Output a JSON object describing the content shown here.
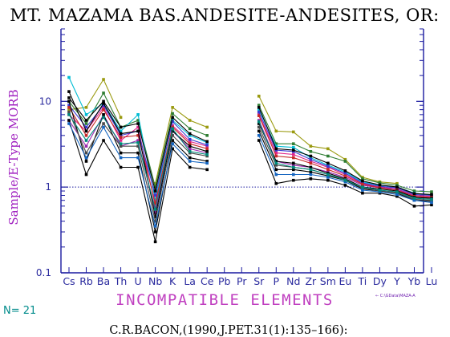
{
  "chart_data": {
    "type": "line",
    "title": "MT. MAZAMA BAS.ANDESITE-ANDESITES, OR:",
    "ylabel": "Sample/E-Type MORB",
    "xlabel": "INCOMPATIBLE ELEMENTS",
    "yscale": "log",
    "ylim": [
      0.1,
      70
    ],
    "ytick_labels": [
      "0.1",
      "1",
      "10"
    ],
    "ytick_values": [
      0.1,
      1,
      10
    ],
    "reference_line": 1,
    "categories": [
      "Cs",
      "Rb",
      "Ba",
      "Th",
      "U",
      "Nb",
      "K",
      "La",
      "Ce",
      "Pb",
      "Pr",
      "Sr",
      "P",
      "Nd",
      "Zr",
      "Sm",
      "Eu",
      "Ti",
      "Dy",
      "Y",
      "Yb",
      "Lu"
    ],
    "series": [
      {
        "color": "#9a9a10",
        "values": [
          8,
          8.5,
          18,
          6.5,
          null,
          1.1,
          8.5,
          6,
          5,
          null,
          null,
          11.5,
          4.5,
          4.4,
          3.0,
          2.8,
          2.1,
          1.3,
          1.15,
          1.1,
          null,
          null
        ]
      },
      {
        "color": "#2e7d32",
        "values": [
          10,
          5.5,
          12.5,
          5,
          6,
          1.0,
          7.2,
          4.8,
          4,
          null,
          null,
          9,
          3.2,
          3.2,
          2.6,
          2.3,
          2.0,
          1.25,
          1.12,
          1.05,
          0.9,
          0.88
        ]
      },
      {
        "color": "#00bcd4",
        "values": [
          19,
          7,
          9.5,
          4.5,
          7,
          0.7,
          6,
          4,
          3.3,
          null,
          null,
          8,
          3.0,
          2.9,
          2.2,
          1.8,
          1.5,
          1.15,
          1.05,
          1.0,
          0.85,
          0.8
        ]
      },
      {
        "color": "#e0238a",
        "values": [
          7,
          4.5,
          8.5,
          3.5,
          5,
          0.6,
          5.2,
          3.4,
          3.0,
          null,
          null,
          7,
          2.5,
          2.4,
          2.0,
          1.7,
          1.4,
          1.1,
          1.0,
          0.95,
          0.8,
          0.78
        ]
      },
      {
        "color": "#3a3ad0",
        "values": [
          9,
          5,
          9,
          4,
          4.5,
          0.8,
          5.8,
          3.6,
          3.1,
          null,
          null,
          7.5,
          2.7,
          2.6,
          2.1,
          1.75,
          1.45,
          1.12,
          1.02,
          0.98,
          0.82,
          0.8
        ]
      },
      {
        "color": "#9c27b0",
        "values": [
          6,
          3,
          7,
          3,
          3.5,
          0.5,
          4.5,
          2.8,
          2.5,
          null,
          null,
          6,
          2.0,
          1.8,
          1.7,
          1.5,
          1.3,
          1.05,
          0.98,
          0.95,
          0.78,
          0.75
        ]
      },
      {
        "color": "#c62828",
        "values": [
          8.5,
          4,
          8,
          3.8,
          4.0,
          0.65,
          5.0,
          3.2,
          2.8,
          null,
          null,
          6.8,
          2.3,
          2.2,
          1.9,
          1.6,
          1.35,
          1.08,
          0.98,
          0.92,
          0.78,
          0.76
        ]
      },
      {
        "color": "#000000",
        "values": [
          13,
          4.5,
          9.5,
          4.2,
          4.5,
          0.45,
          4.5,
          3.0,
          2.6,
          null,
          null,
          5.5,
          2.0,
          1.9,
          1.7,
          1.45,
          1.25,
          1.0,
          0.95,
          0.9,
          0.76,
          0.74
        ]
      },
      {
        "color": "#000000",
        "values": [
          10,
          2,
          7,
          2.5,
          2.5,
          0.3,
          3.5,
          2.2,
          2.0,
          null,
          null,
          4.5,
          1.6,
          1.6,
          1.5,
          1.35,
          1.2,
          0.95,
          0.9,
          0.85,
          0.7,
          0.68
        ]
      },
      {
        "color": "#000000",
        "values": [
          6,
          1.4,
          3.5,
          1.7,
          1.7,
          0.23,
          2.8,
          1.7,
          1.6,
          null,
          null,
          3.5,
          1.1,
          1.2,
          1.25,
          1.2,
          1.05,
          0.85,
          0.85,
          0.78,
          0.6,
          0.62
        ]
      },
      {
        "color": "#4a4a4a",
        "values": [
          7.5,
          2.5,
          5.5,
          3,
          3.0,
          0.4,
          4.0,
          2.5,
          2.3,
          null,
          null,
          5,
          1.8,
          1.7,
          1.6,
          1.4,
          1.22,
          0.98,
          0.9,
          0.86,
          0.72,
          0.7
        ]
      },
      {
        "color": "#1565c0",
        "values": [
          5.5,
          2.2,
          5,
          2.2,
          2.2,
          0.35,
          3.2,
          2.0,
          1.9,
          null,
          null,
          4.0,
          1.4,
          1.4,
          1.4,
          1.3,
          1.15,
          0.92,
          0.88,
          0.82,
          0.7,
          0.66
        ]
      },
      {
        "color": "#00897b",
        "values": [
          7,
          3.5,
          6.5,
          3.2,
          3.3,
          0.55,
          4.8,
          2.6,
          2.4,
          null,
          null,
          5.8,
          1.9,
          1.7,
          1.6,
          1.4,
          1.2,
          1.0,
          0.92,
          0.88,
          0.74,
          0.72
        ]
      },
      {
        "color": "#000000",
        "values": [
          11,
          6,
          10,
          5,
          5.5,
          0.9,
          6.5,
          4.2,
          3.4,
          null,
          null,
          8.5,
          2.8,
          2.7,
          2.3,
          1.9,
          1.55,
          1.18,
          1.06,
          1.0,
          0.84,
          0.82
        ]
      }
    ],
    "n_label": "N= 21",
    "citation": "C.R.BACON,(1990,J.PET.31(1):135–166):",
    "file_label": "← C:\\GData\\MAZA-A",
    "grid": false
  }
}
